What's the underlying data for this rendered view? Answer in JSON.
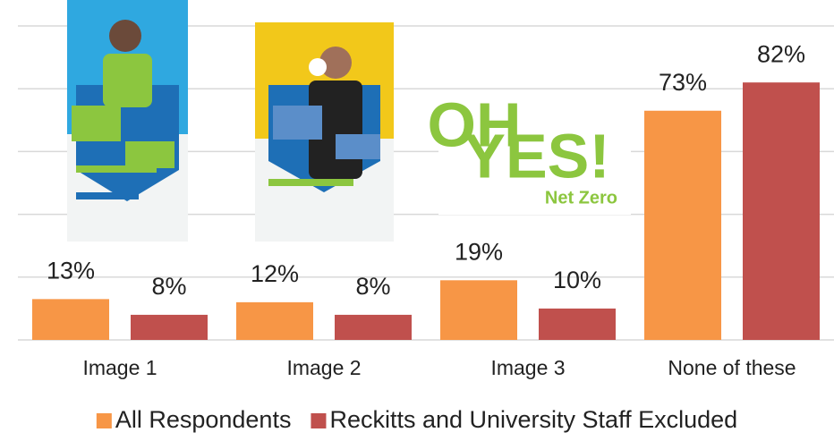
{
  "chart_data": {
    "type": "bar",
    "categories": [
      "Image 1",
      "Image 2",
      "Image 3",
      "None of these"
    ],
    "series": [
      {
        "name": "All Respondents",
        "color": "#f79646",
        "values": [
          13,
          12,
          19,
          73
        ],
        "value_labels": [
          "13%",
          "12%",
          "19%",
          "73%"
        ]
      },
      {
        "name": "Reckitts and University Staff Excluded",
        "color": "#c0504d",
        "values": [
          8,
          8,
          10,
          82
        ],
        "value_labels": [
          "8%",
          "8%",
          "10%",
          "82%"
        ]
      }
    ],
    "ylim": [
      0,
      100
    ],
    "yticks": [
      0,
      20,
      40,
      60,
      80,
      100
    ],
    "grid": true,
    "legend": "bottom",
    "annotations": [
      "OH",
      "YES!",
      "Net Zero"
    ]
  }
}
